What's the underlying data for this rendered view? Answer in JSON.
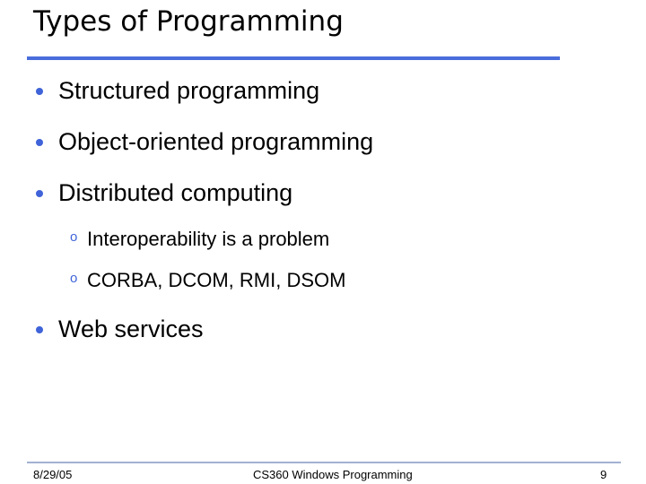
{
  "slide": {
    "title": "Types of Programming",
    "bullets": [
      {
        "text": "Structured programming",
        "level": 1
      },
      {
        "text": "Object-oriented programming",
        "level": 1
      },
      {
        "text": "Distributed computing",
        "level": 1
      },
      {
        "text": "Interoperability is a problem",
        "level": 2
      },
      {
        "text": "CORBA, DCOM, RMI, DSOM",
        "level": 2
      },
      {
        "text": "Web services",
        "level": 1
      }
    ],
    "sub_bullet_glyph": "o"
  },
  "footer": {
    "date": "8/29/05",
    "course": "CS360 Windows Programming",
    "page": "9"
  },
  "colors": {
    "accent": "#4a6ddc",
    "footer_rule": "#a3b0d3"
  }
}
